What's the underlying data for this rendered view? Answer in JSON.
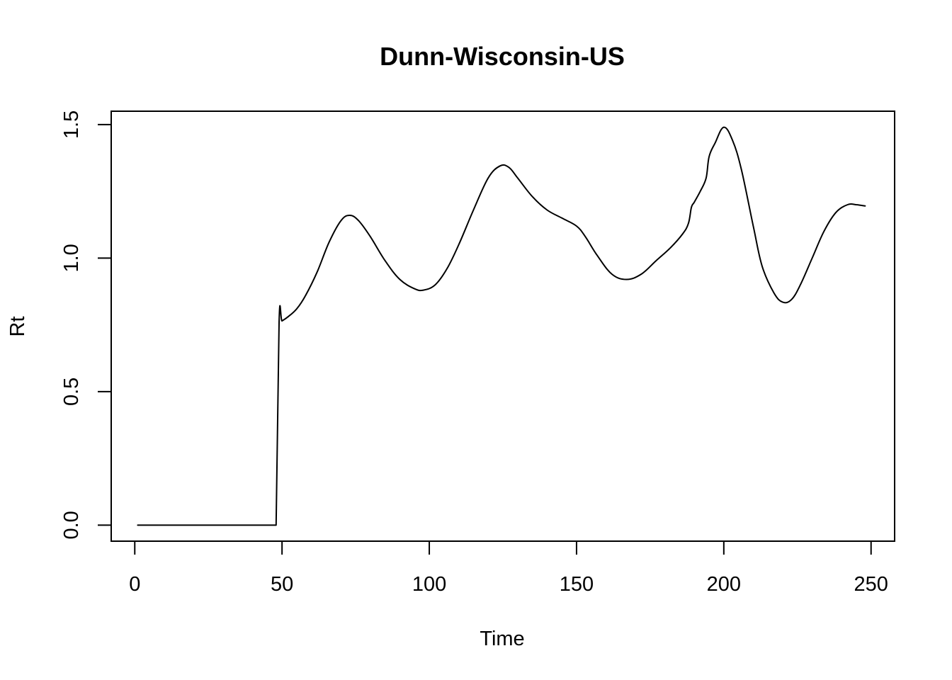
{
  "chart_data": {
    "type": "line",
    "title": "Dunn-Wisconsin-US",
    "xlabel": "Time",
    "ylabel": "Rt",
    "xlim": [
      -8,
      258
    ],
    "ylim": [
      -0.06,
      1.55
    ],
    "xticks": [
      0,
      50,
      100,
      150,
      200,
      250
    ],
    "yticks": [
      0.0,
      0.5,
      1.0,
      1.5
    ],
    "xtick_labels": [
      "0",
      "50",
      "100",
      "150",
      "200",
      "250"
    ],
    "ytick_labels": [
      "0.0",
      "0.5",
      "1.0",
      "1.5"
    ],
    "grid": false,
    "legend": "none",
    "line_color": "#000000",
    "series": [
      {
        "x": [
          1,
          48,
          49,
          50,
          52,
          55,
          58,
          62,
          66,
          70,
          73,
          76,
          80,
          85,
          90,
          95,
          98,
          102,
          106,
          110,
          115,
          120,
          124,
          127,
          130,
          135,
          140,
          145,
          150,
          153,
          157,
          162,
          167,
          172,
          177,
          182,
          186,
          188,
          189,
          190,
          192,
          194,
          195,
          197,
          200,
          203,
          206,
          210,
          213,
          217,
          220,
          223,
          226,
          230,
          234,
          238,
          242,
          245,
          248
        ],
        "y": [
          0,
          0,
          0.76,
          0.765,
          0.78,
          0.81,
          0.86,
          0.95,
          1.06,
          1.14,
          1.16,
          1.14,
          1.08,
          0.99,
          0.92,
          0.885,
          0.88,
          0.9,
          0.96,
          1.05,
          1.18,
          1.3,
          1.345,
          1.34,
          1.3,
          1.23,
          1.18,
          1.15,
          1.12,
          1.08,
          1.01,
          0.94,
          0.92,
          0.94,
          0.99,
          1.04,
          1.09,
          1.13,
          1.19,
          1.21,
          1.25,
          1.3,
          1.38,
          1.43,
          1.49,
          1.44,
          1.33,
          1.12,
          0.97,
          0.87,
          0.835,
          0.845,
          0.9,
          1.0,
          1.1,
          1.17,
          1.2,
          1.2,
          1.195
        ]
      }
    ]
  }
}
